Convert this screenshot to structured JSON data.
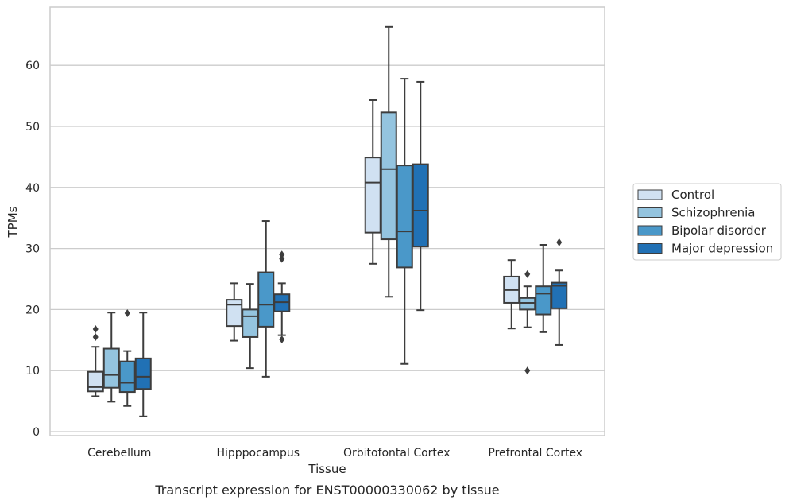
{
  "chart_data": {
    "type": "box",
    "title": "",
    "caption": "Transcript expression for ENST00000330062 by tissue",
    "xlabel": "Tissue",
    "ylabel": "TPMs",
    "ylim": [
      -0.5,
      69
    ],
    "yticks": [
      0,
      10,
      20,
      30,
      40,
      50,
      60
    ],
    "grid": "horizontal",
    "legend_position": "right",
    "categories": [
      "Cerebellum",
      "Hipppocampus",
      "Orbitofontal Cortex",
      "Prefrontal Cortex"
    ],
    "series": [
      {
        "name": "Control",
        "color": "#d0e1f2",
        "boxes": [
          {
            "whislo": 5.8,
            "q1": 6.6,
            "med": 7.3,
            "q3": 9.8,
            "whishi": 13.9,
            "fliers": [
              15.5,
              16.8
            ]
          },
          {
            "whislo": 14.9,
            "q1": 17.3,
            "med": 20.8,
            "q3": 21.6,
            "whishi": 24.3,
            "fliers": []
          },
          {
            "whislo": 27.5,
            "q1": 32.6,
            "med": 40.8,
            "q3": 44.9,
            "whishi": 54.3,
            "fliers": []
          },
          {
            "whislo": 16.9,
            "q1": 21.1,
            "med": 23.2,
            "q3": 25.4,
            "whishi": 28.1,
            "fliers": []
          }
        ]
      },
      {
        "name": "Schizophrenia",
        "color": "#94c4df",
        "boxes": [
          {
            "whislo": 4.9,
            "q1": 7.2,
            "med": 9.3,
            "q3": 13.6,
            "whishi": 19.5,
            "fliers": []
          },
          {
            "whislo": 10.4,
            "q1": 15.5,
            "med": 18.9,
            "q3": 20.0,
            "whishi": 24.2,
            "fliers": []
          },
          {
            "whislo": 22.1,
            "q1": 31.5,
            "med": 43.0,
            "q3": 52.3,
            "whishi": 66.3,
            "fliers": []
          },
          {
            "whislo": 17.1,
            "q1": 20.0,
            "med": 21.1,
            "q3": 21.9,
            "whishi": 23.8,
            "fliers": [
              25.8,
              10.0
            ]
          }
        ]
      },
      {
        "name": "Bipolar disorder",
        "color": "#4a98c9",
        "boxes": [
          {
            "whislo": 4.2,
            "q1": 6.5,
            "med": 8.0,
            "q3": 11.5,
            "whishi": 13.2,
            "fliers": [
              19.4
            ]
          },
          {
            "whislo": 9.0,
            "q1": 17.2,
            "med": 20.8,
            "q3": 26.1,
            "whishi": 34.5,
            "fliers": []
          },
          {
            "whislo": 11.1,
            "q1": 26.9,
            "med": 32.8,
            "q3": 43.6,
            "whishi": 57.8,
            "fliers": []
          },
          {
            "whislo": 16.3,
            "q1": 19.2,
            "med": 22.6,
            "q3": 23.8,
            "whishi": 30.6,
            "fliers": []
          }
        ]
      },
      {
        "name": "Major depression",
        "color": "#2171b5",
        "boxes": [
          {
            "whislo": 2.5,
            "q1": 7.0,
            "med": 9.0,
            "q3": 12.0,
            "whishi": 19.5,
            "fliers": []
          },
          {
            "whislo": 15.8,
            "q1": 19.7,
            "med": 21.2,
            "q3": 22.5,
            "whishi": 24.3,
            "fliers": [
              28.3,
              29.0,
              15.1
            ]
          },
          {
            "whislo": 19.9,
            "q1": 30.3,
            "med": 36.2,
            "q3": 43.8,
            "whishi": 57.3,
            "fliers": []
          },
          {
            "whislo": 14.2,
            "q1": 20.2,
            "med": 23.9,
            "q3": 24.4,
            "whishi": 26.4,
            "fliers": [
              31.0
            ]
          }
        ]
      }
    ]
  }
}
